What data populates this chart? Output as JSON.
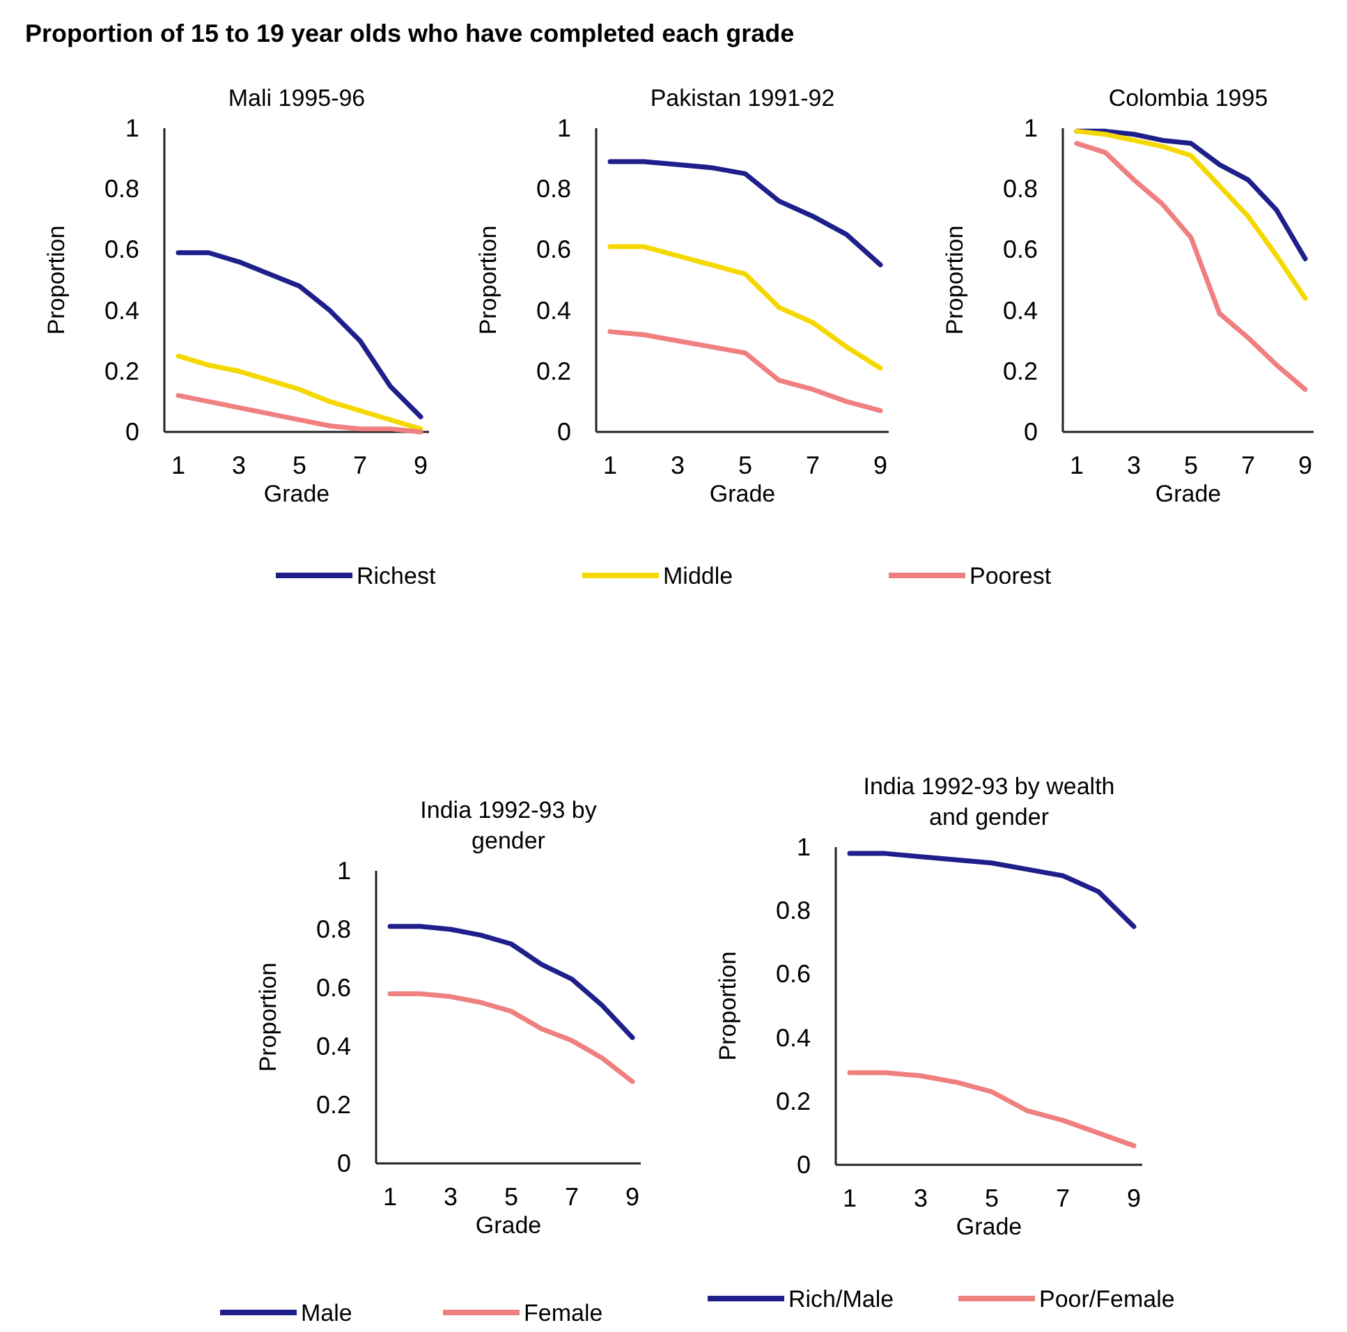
{
  "chart_data": [
    {
      "type": "line",
      "title": "Mali 1995-96",
      "xlabel": "Grade",
      "ylabel": "Proportion",
      "annotations": [
        "Proportion of 15 to 19 year olds who have completed each grade"
      ],
      "categories": [
        "1",
        null,
        "3",
        null,
        "5",
        null,
        "7",
        null,
        "9"
      ],
      "ylim": [
        0,
        1
      ],
      "yticks": [
        0,
        0.2,
        0.4,
        0.6,
        0.8,
        1
      ],
      "series": [
        {
          "color": "#1f1f8c",
          "values": [
            0.59,
            0.59,
            0.56,
            0.52,
            0.48,
            0.4,
            0.3,
            0.15,
            0.05
          ]
        },
        {
          "color": "#f5d800",
          "values": [
            0.25,
            0.22,
            0.2,
            0.17,
            0.14,
            0.1,
            0.07,
            0.04,
            0.01
          ]
        },
        {
          "color": "#f08080",
          "values": [
            0.12,
            0.1,
            0.08,
            0.06,
            0.04,
            0.02,
            0.01,
            0.01,
            0.0
          ]
        }
      ]
    },
    {
      "type": "line",
      "title": "Pakistan 1991-92",
      "xlabel": "Grade",
      "ylabel": "Proportion",
      "legend": "bottom",
      "categories": [
        "1",
        null,
        "3",
        null,
        "5",
        null,
        "7",
        null,
        "9"
      ],
      "ylim": [
        0,
        1
      ],
      "yticks": [
        0,
        0.2,
        0.4,
        0.6,
        0.8,
        1
      ],
      "series": [
        {
          "name": "Richest",
          "color": "#1f1f8c",
          "values": [
            0.89,
            0.89,
            0.88,
            0.87,
            0.85,
            0.76,
            0.71,
            0.65,
            0.55
          ]
        },
        {
          "name": "Middle",
          "color": "#f5d800",
          "values": [
            0.61,
            0.61,
            0.58,
            0.55,
            0.52,
            0.41,
            0.36,
            0.28,
            0.21
          ]
        },
        {
          "name": "Poorest",
          "color": "#f08080",
          "values": [
            0.33,
            0.32,
            0.3,
            0.28,
            0.26,
            0.17,
            0.14,
            0.1,
            0.07
          ]
        }
      ]
    },
    {
      "type": "line",
      "title": "Colombia 1995",
      "xlabel": "Grade",
      "ylabel": "Proportion",
      "categories": [
        "1",
        null,
        "3",
        null,
        "5",
        null,
        "7",
        null,
        "9"
      ],
      "ylim": [
        0,
        1
      ],
      "yticks": [
        0,
        0.2,
        0.4,
        0.6,
        0.8,
        1
      ],
      "series": [
        {
          "color": "#1f1f8c",
          "values": [
            0.99,
            0.99,
            0.98,
            0.96,
            0.95,
            0.88,
            0.83,
            0.73,
            0.57
          ]
        },
        {
          "color": "#f5d800",
          "values": [
            0.99,
            0.98,
            0.96,
            0.94,
            0.91,
            0.81,
            0.71,
            0.58,
            0.44
          ]
        },
        {
          "color": "#f08080",
          "values": [
            0.95,
            0.92,
            0.83,
            0.75,
            0.64,
            0.39,
            0.31,
            0.22,
            0.14
          ]
        }
      ]
    },
    {
      "type": "line",
      "title": "India 1992-93 by gender",
      "xlabel": "Grade",
      "ylabel": "Proportion",
      "legend": "bottom",
      "categories": [
        "1",
        null,
        "3",
        null,
        "5",
        null,
        "7",
        null,
        "9"
      ],
      "ylim": [
        0,
        1
      ],
      "yticks": [
        0,
        0.2,
        0.4,
        0.6,
        0.8,
        1
      ],
      "series": [
        {
          "name": "Male",
          "color": "#1f1f8c",
          "values": [
            0.81,
            0.81,
            0.8,
            0.78,
            0.75,
            0.68,
            0.63,
            0.54,
            0.43
          ]
        },
        {
          "name": "Female",
          "color": "#f08080",
          "values": [
            0.58,
            0.58,
            0.57,
            0.55,
            0.52,
            0.46,
            0.42,
            0.36,
            0.28
          ]
        }
      ]
    },
    {
      "type": "line",
      "title": "India 1992-93 by wealth and gender",
      "xlabel": "Grade",
      "ylabel": "Proportion",
      "legend": "bottom",
      "categories": [
        "1",
        null,
        "3",
        null,
        "5",
        null,
        "7",
        null,
        "9"
      ],
      "ylim": [
        0,
        1
      ],
      "yticks": [
        0,
        0.2,
        0.4,
        0.6,
        0.8,
        1
      ],
      "series": [
        {
          "name": "Rich/Male",
          "color": "#1f1f8c",
          "values": [
            0.98,
            0.98,
            0.97,
            0.96,
            0.95,
            0.93,
            0.91,
            0.86,
            0.75
          ]
        },
        {
          "name": "Poor/Female",
          "color": "#f08080",
          "values": [
            0.29,
            0.29,
            0.28,
            0.26,
            0.23,
            0.17,
            0.14,
            0.1,
            0.06
          ]
        }
      ]
    }
  ]
}
